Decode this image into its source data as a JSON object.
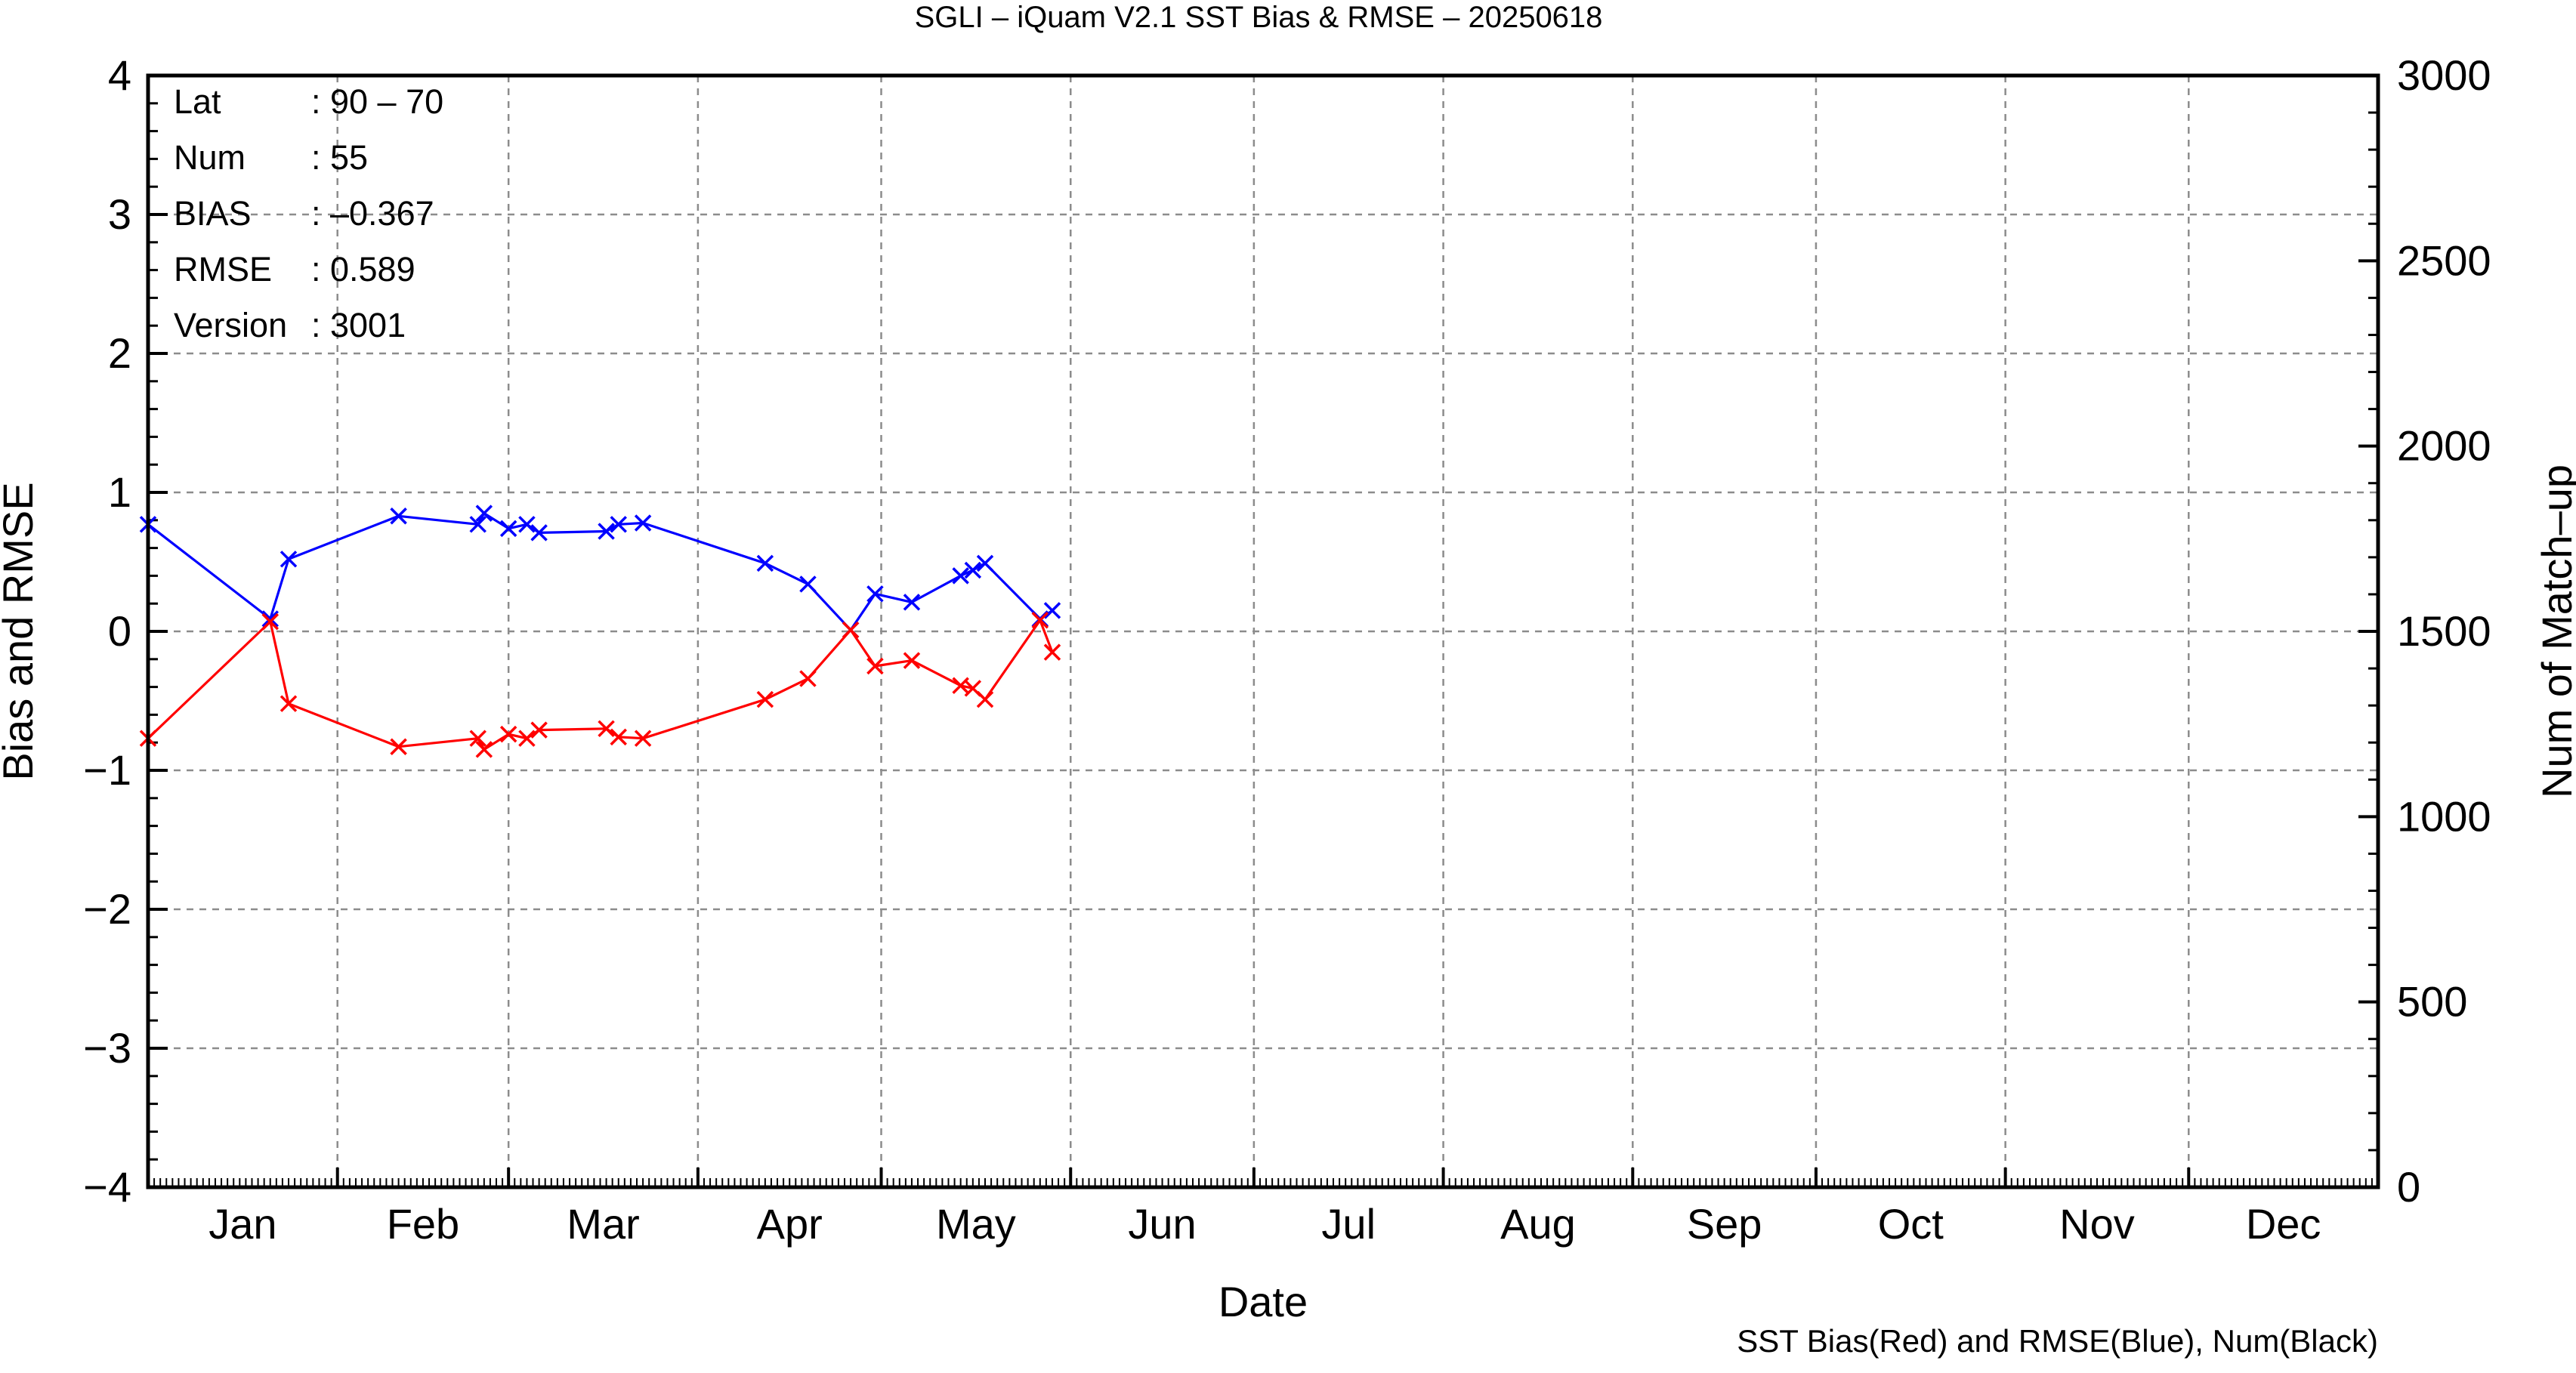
{
  "chart_data": {
    "type": "line",
    "title": "SGLI – iQuam V2.1 SST Bias & RMSE  – 20250618",
    "xlabel": "Date",
    "ylabel": "Bias and RMSE",
    "y2label": "Num of Match–up",
    "caption": "SST Bias(Red) and RMSE(Blue), Num(Black)",
    "x_domain": [
      "2025-01-01",
      "2025-12-31"
    ],
    "ylim": [
      -4,
      4
    ],
    "y2lim": [
      0,
      3000
    ],
    "grid": true,
    "y_ticks": [
      4,
      3,
      2,
      1,
      0,
      -1,
      -2,
      -3,
      -4
    ],
    "y_tick_labels": [
      "4",
      "3",
      "2",
      "1",
      "0",
      "−1",
      "−2",
      "−3",
      "−4"
    ],
    "y2_ticks": [
      3000,
      2500,
      2000,
      1500,
      1000,
      500,
      0
    ],
    "y2_tick_labels": [
      "3000",
      "2500",
      "2000",
      "1500",
      "1000",
      "500",
      "0"
    ],
    "months": [
      "Jan",
      "Feb",
      "Mar",
      "Apr",
      "May",
      "Jun",
      "Jul",
      "Aug",
      "Sep",
      "Oct",
      "Nov",
      "Dec"
    ],
    "info": {
      "lat_label": "Lat",
      "lat_value": ": 90 – 70",
      "num_label": "Num",
      "num_value": ": 55",
      "bias_label": "BIAS",
      "bias_value": ": –0.367",
      "rmse_label": "RMSE",
      "rmse_value": ": 0.589",
      "version_label": "Version",
      "version_value": ": 3001"
    },
    "series": [
      {
        "color": "#0000ff",
        "points": [
          [
            "2025-01-01",
            0.77
          ],
          [
            "2025-01-21",
            0.09
          ],
          [
            "2025-01-24",
            0.52
          ],
          [
            "2025-02-11",
            0.83
          ],
          [
            "2025-02-24",
            0.77
          ],
          [
            "2025-02-25",
            0.85
          ],
          [
            "2025-02-29",
            0.74
          ],
          [
            "2025-03-04",
            0.77
          ],
          [
            "2025-03-06",
            0.71
          ],
          [
            "2025-03-17",
            0.72
          ],
          [
            "2025-03-19",
            0.77
          ],
          [
            "2025-03-23",
            0.78
          ],
          [
            "2025-04-12",
            0.49
          ],
          [
            "2025-04-19",
            0.34
          ],
          [
            "2025-04-26",
            0.01
          ],
          [
            "2025-04-30",
            0.27
          ],
          [
            "2025-05-06",
            0.21
          ],
          [
            "2025-05-14",
            0.4
          ],
          [
            "2025-05-16",
            0.44
          ],
          [
            "2025-05-18",
            0.49
          ],
          [
            "2025-05-27",
            0.09
          ],
          [
            "2025-05-29",
            0.15
          ]
        ]
      },
      {
        "color": "#ff0000",
        "points": [
          [
            "2025-01-01",
            -0.77
          ],
          [
            "2025-01-21",
            0.07
          ],
          [
            "2025-01-24",
            -0.52
          ],
          [
            "2025-02-11",
            -0.83
          ],
          [
            "2025-02-24",
            -0.77
          ],
          [
            "2025-02-25",
            -0.85
          ],
          [
            "2025-02-29",
            -0.74
          ],
          [
            "2025-03-04",
            -0.77
          ],
          [
            "2025-03-06",
            -0.71
          ],
          [
            "2025-03-17",
            -0.7
          ],
          [
            "2025-03-19",
            -0.76
          ],
          [
            "2025-03-23",
            -0.77
          ],
          [
            "2025-04-12",
            -0.49
          ],
          [
            "2025-04-19",
            -0.34
          ],
          [
            "2025-04-26",
            0.01
          ],
          [
            "2025-04-30",
            -0.25
          ],
          [
            "2025-05-06",
            -0.21
          ],
          [
            "2025-05-14",
            -0.39
          ],
          [
            "2025-05-16",
            -0.41
          ],
          [
            "2025-05-18",
            -0.49
          ],
          [
            "2025-05-27",
            0.08
          ],
          [
            "2025-05-29",
            -0.15
          ]
        ]
      }
    ]
  }
}
